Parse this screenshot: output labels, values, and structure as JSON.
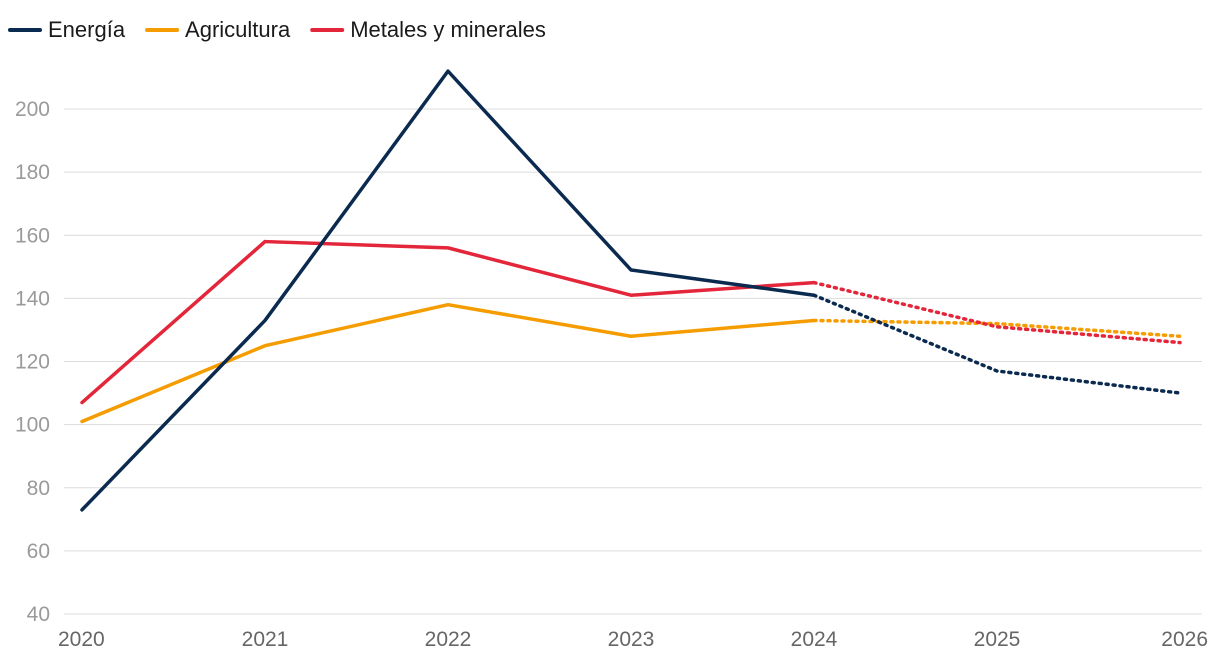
{
  "chart_data": {
    "type": "line",
    "title": "",
    "xlabel": "",
    "ylabel": "",
    "categories": [
      "2020",
      "2021",
      "2022",
      "2023",
      "2024",
      "2025",
      "2026"
    ],
    "ylim": [
      40,
      210
    ],
    "yticks": [
      40,
      60,
      80,
      100,
      120,
      140,
      160,
      180,
      200
    ],
    "grid": true,
    "legend_position": "top-left",
    "actual_until": "2024",
    "forecast_from": "2024",
    "forecast_style": "dotted",
    "series": [
      {
        "name": "Energía",
        "color": "#0b2a4f",
        "values": [
          73,
          133,
          212,
          149,
          141,
          117,
          110
        ]
      },
      {
        "name": "Agricultura",
        "color": "#f59c00",
        "values": [
          101,
          125,
          138,
          128,
          133,
          132,
          128
        ]
      },
      {
        "name": "Metales y minerales",
        "color": "#e3263a",
        "values": [
          107,
          158,
          156,
          141,
          145,
          131,
          126
        ]
      }
    ]
  }
}
